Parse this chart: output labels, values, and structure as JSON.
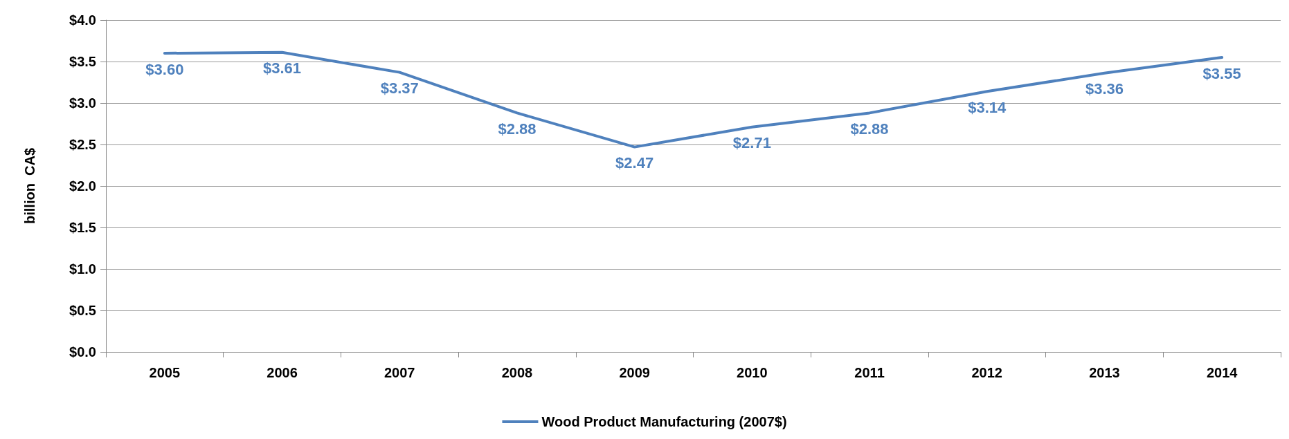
{
  "chart_data": {
    "type": "line",
    "ylabel": "billion  CA$",
    "categories": [
      "2005",
      "2006",
      "2007",
      "2008",
      "2009",
      "2010",
      "2011",
      "2012",
      "2013",
      "2014"
    ],
    "series": [
      {
        "name": "Wood Product Manufacturing (2007$)",
        "color": "#4f81bd",
        "values": [
          3.6,
          3.61,
          3.37,
          2.88,
          2.47,
          2.71,
          2.88,
          3.14,
          3.36,
          3.55
        ],
        "value_labels": [
          "$3.60",
          "$3.61",
          "$3.37",
          "$2.88",
          "$2.47",
          "$2.71",
          "$2.88",
          "$3.14",
          "$3.36",
          "$3.55"
        ]
      }
    ],
    "ylim": [
      0,
      4
    ],
    "yticks": [
      {
        "value": 0,
        "label": "$0.0"
      },
      {
        "value": 0.5,
        "label": "$0.5"
      },
      {
        "value": 1,
        "label": "$1.0"
      },
      {
        "value": 1.5,
        "label": "$1.5"
      },
      {
        "value": 2,
        "label": "$2.0"
      },
      {
        "value": 2.5,
        "label": "$2.5"
      },
      {
        "value": 3,
        "label": "$3.0"
      },
      {
        "value": 3.5,
        "label": "$3.5"
      },
      {
        "value": 4,
        "label": "$4.0"
      }
    ],
    "grid": "y",
    "legend": "bottom",
    "marker": "none",
    "line_style": "solid"
  }
}
